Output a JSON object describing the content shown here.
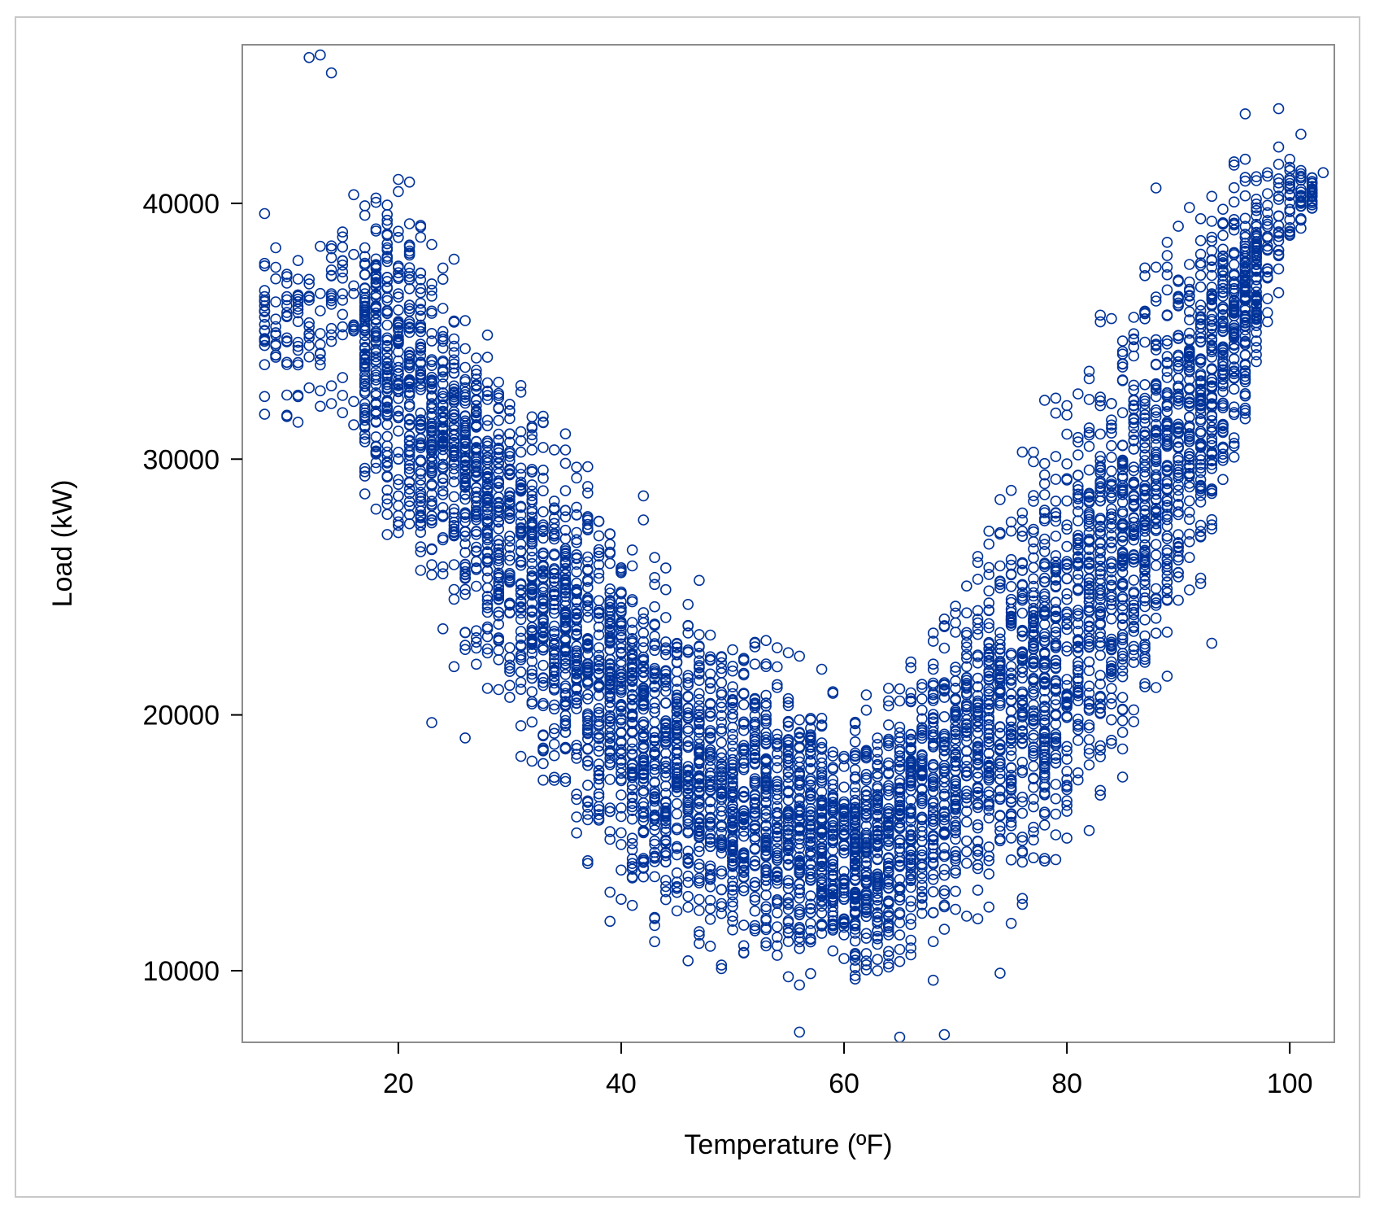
{
  "chart_data": {
    "type": "scatter",
    "title": "",
    "xlabel": "Temperature (ºF)",
    "ylabel": "Load (kW)",
    "xlim": [
      6,
      104
    ],
    "ylim": [
      7200,
      46200
    ],
    "xticks": [
      20,
      40,
      60,
      80,
      100
    ],
    "yticks": [
      10000,
      20000,
      30000,
      40000
    ],
    "grid": false,
    "legend": "none",
    "marker": "open-circle",
    "marker_color": "#003399",
    "frame_color": "#8c8c8c",
    "point_density": "very dense overlapping band (tens of thousands of points)",
    "trend": "U-shaped; minimum load near 60 ºF",
    "band_profile": [
      {
        "x": 10,
        "low": 30000,
        "high": 40000
      },
      {
        "x": 15,
        "low": 30000,
        "high": 42000
      },
      {
        "x": 20,
        "low": 24000,
        "high": 42500
      },
      {
        "x": 25,
        "low": 21500,
        "high": 39000
      },
      {
        "x": 30,
        "low": 18000,
        "high": 36000
      },
      {
        "x": 35,
        "low": 13500,
        "high": 33000
      },
      {
        "x": 40,
        "low": 10500,
        "high": 30000
      },
      {
        "x": 45,
        "low": 9200,
        "high": 27000
      },
      {
        "x": 50,
        "low": 8500,
        "high": 25000
      },
      {
        "x": 55,
        "low": 8000,
        "high": 24000
      },
      {
        "x": 60,
        "low": 8200,
        "high": 21000
      },
      {
        "x": 65,
        "low": 8500,
        "high": 22500
      },
      {
        "x": 70,
        "low": 9500,
        "high": 27500
      },
      {
        "x": 75,
        "low": 10500,
        "high": 31000
      },
      {
        "x": 80,
        "low": 12000,
        "high": 35500
      },
      {
        "x": 85,
        "low": 15000,
        "high": 38500
      },
      {
        "x": 90,
        "low": 21000,
        "high": 41000
      },
      {
        "x": 95,
        "low": 28000,
        "high": 42500
      },
      {
        "x": 100,
        "low": 37500,
        "high": 43500
      },
      {
        "x": 103,
        "low": 39500,
        "high": 41500
      }
    ],
    "notable_points": [
      {
        "x": 12,
        "y": 45700
      },
      {
        "x": 13,
        "y": 45800
      },
      {
        "x": 14,
        "y": 45100
      },
      {
        "x": 8,
        "y": 39600
      },
      {
        "x": 9,
        "y": 37500
      },
      {
        "x": 10,
        "y": 36000
      },
      {
        "x": 11,
        "y": 32500
      },
      {
        "x": 23,
        "y": 19700
      },
      {
        "x": 26,
        "y": 19100
      },
      {
        "x": 56,
        "y": 7600
      },
      {
        "x": 65,
        "y": 7400
      },
      {
        "x": 69,
        "y": 7500
      },
      {
        "x": 96,
        "y": 43500
      },
      {
        "x": 99,
        "y": 43700
      },
      {
        "x": 101,
        "y": 42700
      },
      {
        "x": 102,
        "y": 40100
      },
      {
        "x": 103,
        "y": 41200
      },
      {
        "x": 93,
        "y": 22800
      },
      {
        "x": 74,
        "y": 9900
      },
      {
        "x": 88,
        "y": 40600
      }
    ]
  }
}
